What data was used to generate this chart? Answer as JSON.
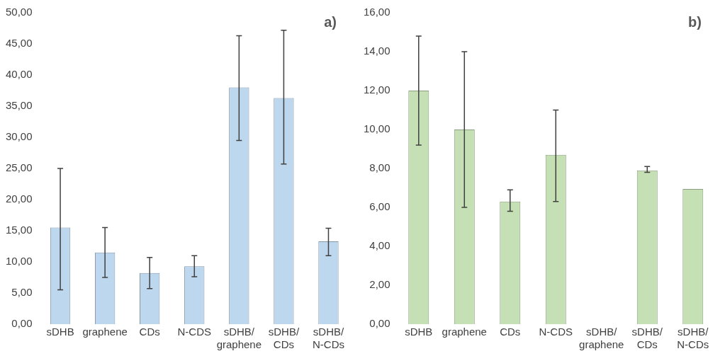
{
  "chart_data": [
    {
      "type": "bar",
      "categories": [
        "sDHB",
        "graphene",
        "CDs",
        "N-CDS",
        "sDHB/graphene",
        "sDHB/CDs",
        "sDHB/N-CDs"
      ],
      "values": [
        15.5,
        11.5,
        8.2,
        9.3,
        38,
        36.3,
        13.3
      ],
      "errors": [
        [
          5.5,
          25
        ],
        [
          7.5,
          15.5
        ],
        [
          5.7,
          10.7
        ],
        [
          7.6,
          11
        ],
        [
          29.5,
          46.3
        ],
        [
          25.7,
          47.2
        ],
        [
          11,
          15.4
        ]
      ],
      "color": "#bdd7ee",
      "ylim": [
        0,
        50
      ],
      "yticks": [
        {
          "value": 0,
          "label": "0,00"
        },
        {
          "value": 5,
          "label": "5,00"
        },
        {
          "value": 10,
          "label": "10,00"
        },
        {
          "value": 15,
          "label": "15,00"
        },
        {
          "value": 20,
          "label": "20,00"
        },
        {
          "value": 25,
          "label": "25,00"
        },
        {
          "value": 30,
          "label": "30,00"
        },
        {
          "value": 35,
          "label": "35,00"
        },
        {
          "value": 40,
          "label": "40,00"
        },
        {
          "value": 45,
          "label": "45,00"
        },
        {
          "value": 50,
          "label": "50,00"
        }
      ],
      "grid": false,
      "legend": false,
      "annotations": [
        "a)"
      ]
    },
    {
      "type": "bar",
      "categories": [
        "sDHB",
        "graphene",
        "CDs",
        "N-CDS",
        "sDHB/graphene",
        "sDHB/CDs",
        "sDHB/N-CDs"
      ],
      "values": [
        12,
        10,
        6.3,
        8.7,
        null,
        7.9,
        6.95
      ],
      "errors": [
        [
          9.2,
          14.8
        ],
        [
          6,
          14
        ],
        [
          5.8,
          6.9
        ],
        [
          6.3,
          11
        ],
        null,
        [
          7.8,
          8.1
        ],
        null
      ],
      "color": "#c5e0b4",
      "ylim": [
        0,
        16
      ],
      "yticks": [
        {
          "value": 0,
          "label": "0,00"
        },
        {
          "value": 2,
          "label": "2,00"
        },
        {
          "value": 4,
          "label": "4,00"
        },
        {
          "value": 6,
          "label": "6,00"
        },
        {
          "value": 8,
          "label": "8,00"
        },
        {
          "value": 10,
          "label": "10,00"
        },
        {
          "value": 12,
          "label": "12,00"
        },
        {
          "value": 14,
          "label": "14,00"
        },
        {
          "value": 16,
          "label": "16,00"
        }
      ],
      "grid": false,
      "legend": false,
      "annotations": [
        "b)"
      ]
    }
  ]
}
